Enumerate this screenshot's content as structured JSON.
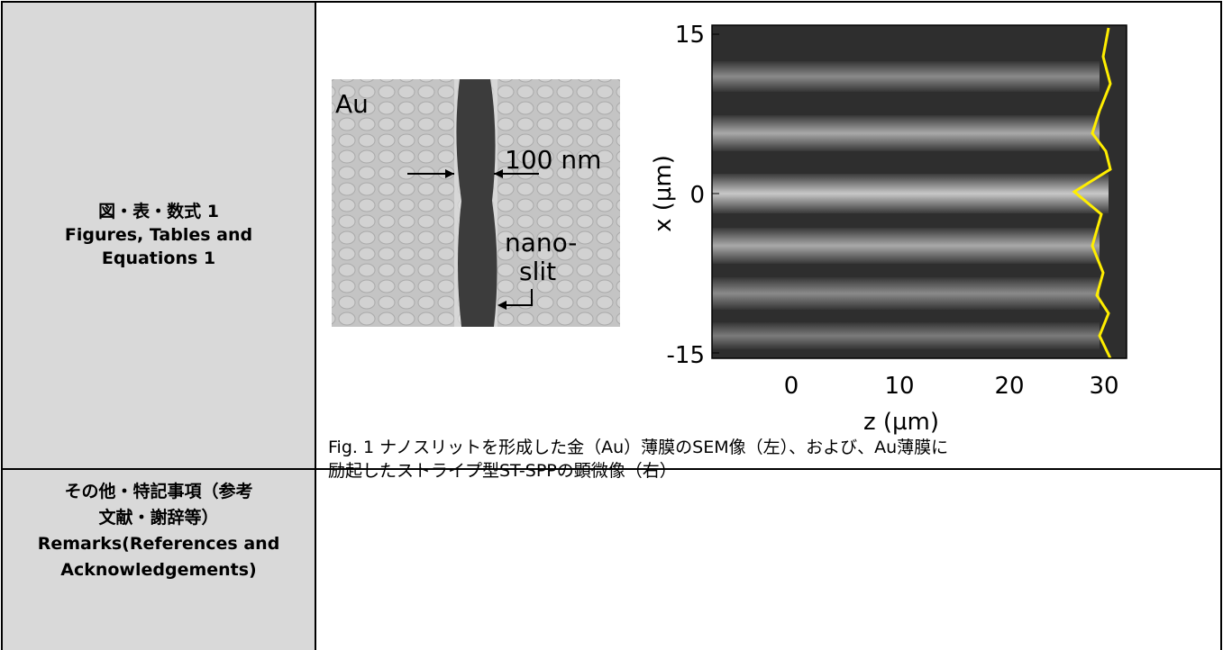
{
  "left_column": {
    "row1": {
      "lines": [
        "図・表・数式 1",
        "Figures, Tables and",
        "Equations 1"
      ]
    },
    "row2": {
      "lines": [
        "その他・特記事項（参考",
        "文献・謝辞等）",
        "Remarks(References and",
        "Acknowledgements)"
      ]
    }
  },
  "figure": {
    "sem": {
      "material": "Au",
      "width_label": "100 nm",
      "slit_label": [
        "nano-",
        "slit"
      ]
    },
    "microscope": {
      "y_label": "x (µm)",
      "x_label": "z (µm)",
      "yticks": [
        15,
        0,
        -15
      ],
      "xticks": [
        0,
        10,
        20,
        30
      ]
    },
    "caption": [
      "Fig. 1 ナノスリットを形成した金（Au）薄膜のSEM像（左）、および、Au薄膜に",
      "励起したストライプ型ST-SPPの顕微像（右）"
    ]
  }
}
